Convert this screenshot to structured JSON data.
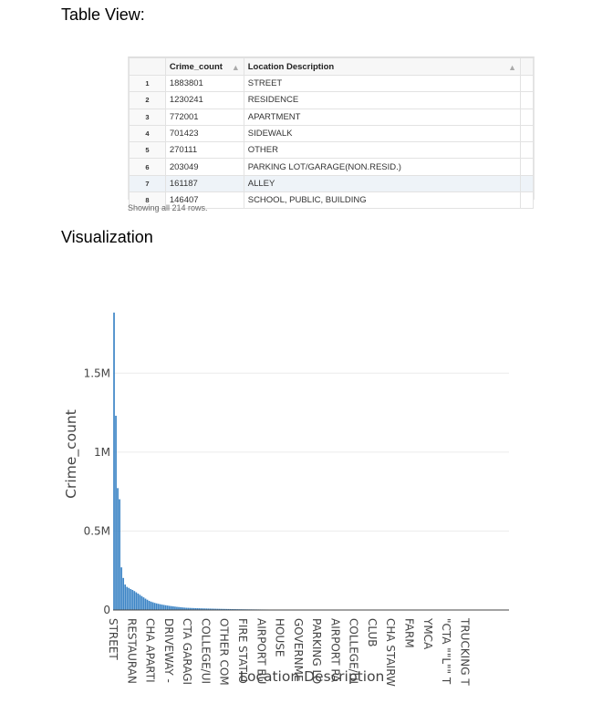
{
  "headings": {
    "table_view": "Table View:",
    "visualization": "Visualization"
  },
  "table": {
    "columns": [
      "Crime_count",
      "Location Description"
    ],
    "rows": [
      {
        "idx": "1",
        "count": "1883801",
        "loc": "STREET"
      },
      {
        "idx": "2",
        "count": "1230241",
        "loc": "RESIDENCE"
      },
      {
        "idx": "3",
        "count": "772001",
        "loc": "APARTMENT"
      },
      {
        "idx": "4",
        "count": "701423",
        "loc": "SIDEWALK"
      },
      {
        "idx": "5",
        "count": "270111",
        "loc": "OTHER"
      },
      {
        "idx": "6",
        "count": "203049",
        "loc": "PARKING LOT/GARAGE(NON.RESID.)"
      },
      {
        "idx": "7",
        "count": "161187",
        "loc": "ALLEY"
      },
      {
        "idx": "8",
        "count": "146407",
        "loc": "SCHOOL, PUBLIC, BUILDING"
      }
    ],
    "status": "Showing all 214 rows."
  },
  "chart_data": {
    "type": "bar",
    "xlabel": "Location Description",
    "ylabel": "Crime_count",
    "ylim": [
      0,
      1900000
    ],
    "yticks": [
      {
        "value": 0,
        "label": "0"
      },
      {
        "value": 500000,
        "label": "0.5M"
      },
      {
        "value": 1000000,
        "label": "1M"
      },
      {
        "value": 1500000,
        "label": "1.5M"
      }
    ],
    "grid": true,
    "bar_color": "#3d85c6",
    "category_count": 214,
    "xtick_labels": [
      {
        "index": 0,
        "label": "STREET"
      },
      {
        "index": 10,
        "label": "RESTAURAN"
      },
      {
        "index": 20,
        "label": "CHA APARTI"
      },
      {
        "index": 30,
        "label": "DRIVEWAY -"
      },
      {
        "index": 40,
        "label": "CTA GARAGI"
      },
      {
        "index": 50,
        "label": "COLLEGE/UI"
      },
      {
        "index": 60,
        "label": "OTHER COM"
      },
      {
        "index": 70,
        "label": "FIRE STATIO"
      },
      {
        "index": 80,
        "label": "AIRPORT BU"
      },
      {
        "index": 90,
        "label": "HOUSE"
      },
      {
        "index": 100,
        "label": "GOVERNME"
      },
      {
        "index": 110,
        "label": "PARKING LO"
      },
      {
        "index": 120,
        "label": "AIRPORT PA"
      },
      {
        "index": 130,
        "label": "COLLEGE/UI"
      },
      {
        "index": 140,
        "label": "CLUB"
      },
      {
        "index": 150,
        "label": "CHA STAIRW"
      },
      {
        "index": 160,
        "label": "FARM"
      },
      {
        "index": 170,
        "label": "YMCA"
      },
      {
        "index": 180,
        "label": "\"CTA \"\"L\"\" T"
      },
      {
        "index": 190,
        "label": "TRUCKING T"
      }
    ],
    "values_head": [
      1883801,
      1230241,
      772001,
      701423,
      270111,
      203049,
      161187,
      146407,
      140000,
      133000,
      127000,
      120000,
      112000,
      104000,
      96000,
      88000,
      80000,
      72000,
      65000,
      58000,
      53000,
      49000,
      45000,
      42000,
      39000,
      36500,
      34000,
      32000,
      30000,
      28000,
      26000,
      24500,
      23000,
      21500,
      20000,
      18800,
      17600,
      16400,
      15300,
      14200
    ],
    "tail_decay": 0.965
  }
}
